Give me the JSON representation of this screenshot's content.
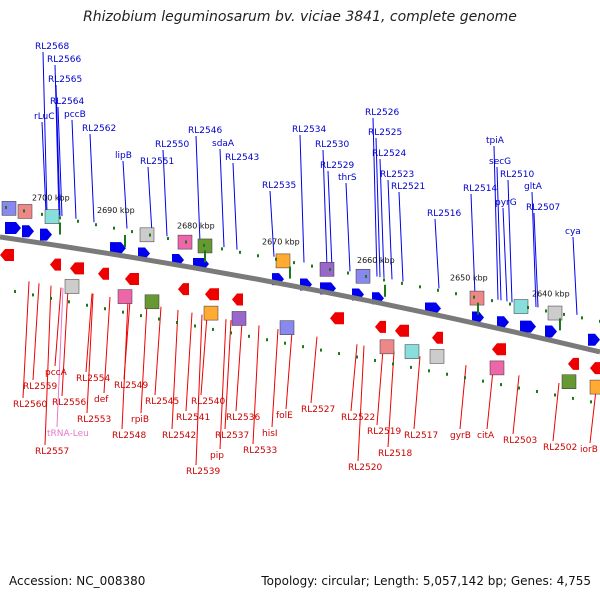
{
  "title": "Rhizobium leguminosarum bv. viciae 3841, complete genome",
  "footer": {
    "accession": "Accession: NC_008380",
    "summary": "Topology: circular; Length: 5,057,142 bp; Genes: 4,755"
  },
  "colors": {
    "forward": "#0000ee",
    "reverse": "#ee0000",
    "backbone": "#7a7a7a",
    "tick": "#1a7a1a",
    "trna": "#e878c8"
  },
  "ticks": [
    {
      "label": "2700 kbp"
    },
    {
      "label": "2690 kbp"
    },
    {
      "label": "2680 kbp"
    },
    {
      "label": "2670 kbp"
    },
    {
      "label": "2660 kbp"
    },
    {
      "label": "2650 kbp"
    },
    {
      "label": "2640 kbp"
    }
  ],
  "forward_genes": [
    "RL2568",
    "RL2566",
    "RL2565",
    "RL2564",
    "rLuC",
    "pccB",
    "RL2562",
    "lipB",
    "RL2550",
    "RL2551",
    "RL2546",
    "sdaA",
    "RL2543",
    "RL2534",
    "RL2535",
    "RL2530",
    "RL2529",
    "thrS",
    "RL2526",
    "RL2525",
    "RL2524",
    "RL2523",
    "RL2521",
    "RL2516",
    "tpiA",
    "secG",
    "RL2514",
    "RL2510",
    "pyrG",
    "gltA",
    "RL2507",
    "cya"
  ],
  "reverse_genes": [
    "RL2559",
    "pccA",
    "RL2560",
    "RL2556",
    "tRNA-Leu",
    "RL2557",
    "RL2554",
    "RL2553",
    "def",
    "RL2549",
    "rpiB",
    "RL2548",
    "RL2545",
    "RL2542",
    "RL2541",
    "RL2540",
    "RL2539",
    "pip",
    "RL2537",
    "RL2536",
    "RL2533",
    "hisI",
    "folE",
    "RL2527",
    "RL2522",
    "RL2520",
    "RL2519",
    "RL2518",
    "RL2517",
    "gyrB",
    "citA",
    "RL2503",
    "RL2502",
    "iorB"
  ]
}
